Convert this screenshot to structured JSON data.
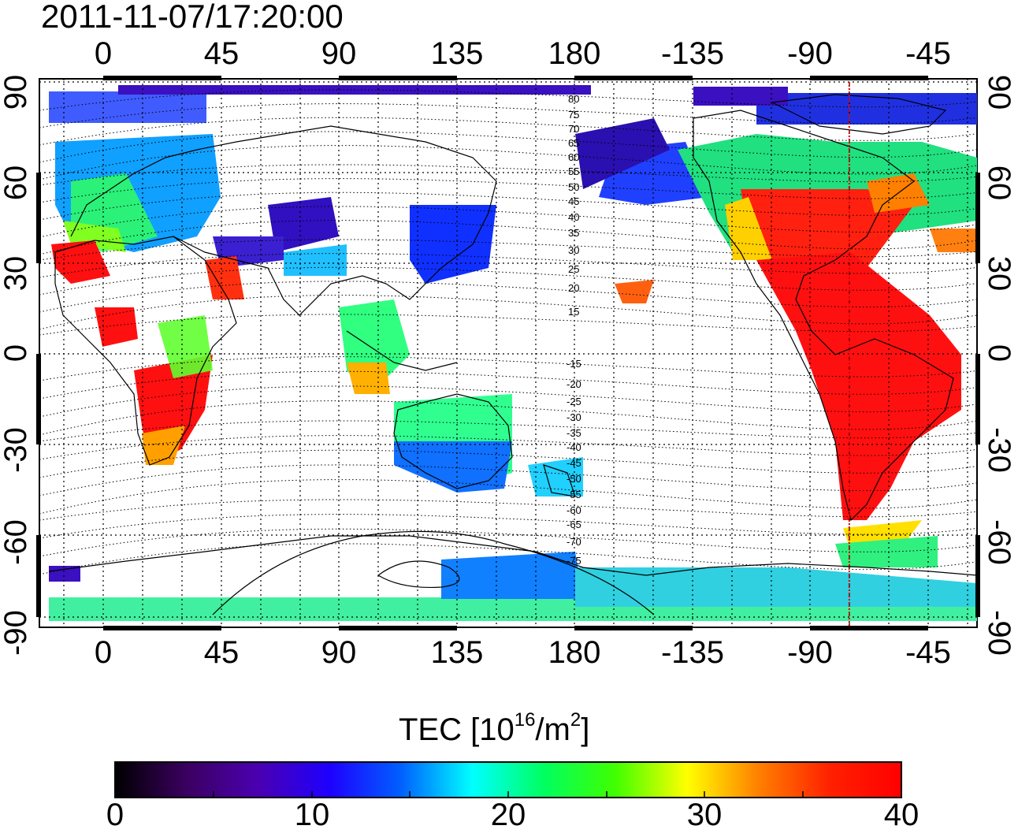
{
  "map": {
    "timestamp": "2011-11-07/17:20:00",
    "longitude_ticks": [
      "0",
      "45",
      "90",
      "135",
      "180",
      "-135",
      "-90",
      "-45"
    ],
    "latitude_ticks": [
      "90",
      "60",
      "30",
      "0",
      "-30",
      "-60",
      "-90"
    ],
    "contour_labels_north": [
      "80",
      "75",
      "70",
      "65",
      "60",
      "55",
      "50",
      "45",
      "40",
      "35",
      "30",
      "25",
      "20",
      "15"
    ],
    "contour_labels_south": [
      "-15",
      "-20",
      "-25",
      "-30",
      "-35",
      "-40",
      "-45",
      "-50",
      "-55",
      "-60",
      "-65",
      "-70",
      "-75"
    ],
    "marker_longitude": -75,
    "marker_color": "#e00000"
  },
  "colorbar": {
    "title_prefix": "TEC  [10",
    "title_sup1": "16",
    "title_mid": "/m",
    "title_sup2": "2",
    "title_suffix": "]",
    "ticks": [
      "0",
      "10",
      "20",
      "30",
      "40"
    ],
    "min": 0,
    "max": 40,
    "stops": [
      "#000000",
      "#3b0060",
      "#4b00b0",
      "#1e00ff",
      "#0060ff",
      "#00ffff",
      "#00ff60",
      "#40ff00",
      "#ffff00",
      "#ff8000",
      "#ff2000",
      "#ff0000"
    ]
  }
}
